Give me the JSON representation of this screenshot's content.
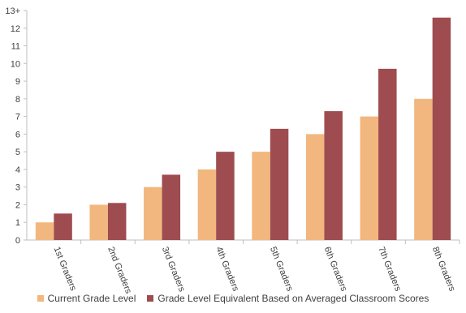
{
  "chart_data": {
    "type": "bar",
    "title": "",
    "xlabel": "",
    "ylabel": "",
    "ylim": [
      0,
      13
    ],
    "yticks": [
      "0",
      "1",
      "2",
      "3",
      "4",
      "5",
      "6",
      "7",
      "8",
      "9",
      "10",
      "11",
      "12",
      "13+"
    ],
    "grid": false,
    "legend_position": "bottom",
    "categories": [
      "1st Graders",
      "2nd Graders",
      "3rd Graders",
      "4th Graders",
      "5th Graders",
      "6th Graders",
      "7th Graders",
      "8th Graders"
    ],
    "series": [
      {
        "name": "Current Grade Level",
        "color": "#f2b77e",
        "values": [
          1,
          2,
          3,
          4,
          5,
          6,
          7,
          8
        ]
      },
      {
        "name": "Grade Level Equivalent Based on Averaged Classroom Scores",
        "color": "#9e4c50",
        "values": [
          1.5,
          2.1,
          3.7,
          5.0,
          6.3,
          7.3,
          9.7,
          12.6
        ]
      }
    ]
  }
}
